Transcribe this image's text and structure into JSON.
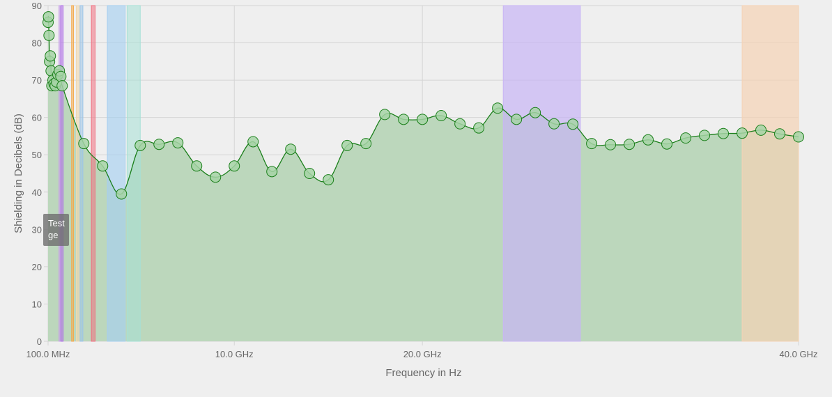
{
  "colors": {
    "line": "#1a7f1a",
    "fill": "#bcd7bc",
    "point_fill": "#a6d3a6",
    "grid": "#d4d4d4",
    "axis_text": "#666666",
    "background": "#efefef"
  },
  "chart_data": {
    "type": "line",
    "xlabel": "Frequency in Hz",
    "ylabel": "Shielding in Decibels (dB)",
    "xlim": [
      0.1,
      40.0
    ],
    "ylim": [
      0,
      90
    ],
    "y_ticks": [
      0,
      10,
      20,
      30,
      40,
      50,
      60,
      70,
      80,
      90
    ],
    "x_ticks": [
      {
        "value": 0.1,
        "label": "100.0 MHz"
      },
      {
        "value": 10.0,
        "label": "10.0 GHz"
      },
      {
        "value": 20.0,
        "label": "20.0 GHz"
      },
      {
        "value": 40.0,
        "label": "40.0 GHz"
      }
    ],
    "grid": true,
    "x_unit": "GHz",
    "series": [
      {
        "points": [
          [
            0.1,
            85.5
          ],
          [
            0.12,
            87.0
          ],
          [
            0.15,
            82.0
          ],
          [
            0.18,
            75.0
          ],
          [
            0.22,
            76.5
          ],
          [
            0.26,
            72.5
          ],
          [
            0.3,
            68.5
          ],
          [
            0.36,
            70.0
          ],
          [
            0.42,
            69.0
          ],
          [
            0.48,
            68.5
          ],
          [
            0.55,
            69.5
          ],
          [
            0.62,
            71.5
          ],
          [
            0.7,
            72.5
          ],
          [
            0.78,
            71.0
          ],
          [
            0.85,
            68.5
          ],
          [
            2.0,
            53.0
          ],
          [
            3.0,
            47.0
          ],
          [
            4.0,
            39.5
          ],
          [
            5.0,
            52.5
          ],
          [
            6.0,
            52.8
          ],
          [
            7.0,
            53.2
          ],
          [
            8.0,
            47.0
          ],
          [
            9.0,
            44.0
          ],
          [
            10.0,
            47.0
          ],
          [
            11.0,
            53.5
          ],
          [
            12.0,
            45.5
          ],
          [
            13.0,
            51.5
          ],
          [
            14.0,
            45.0
          ],
          [
            15.0,
            43.3
          ],
          [
            16.0,
            52.5
          ],
          [
            17.0,
            53.0
          ],
          [
            18.0,
            60.8
          ],
          [
            19.0,
            59.5
          ],
          [
            20.0,
            59.5
          ],
          [
            21.0,
            60.5
          ],
          [
            22.0,
            58.3
          ],
          [
            23.0,
            57.2
          ],
          [
            24.0,
            62.5
          ],
          [
            25.0,
            59.5
          ],
          [
            26.0,
            61.3
          ],
          [
            27.0,
            58.3
          ],
          [
            28.0,
            58.2
          ],
          [
            29.0,
            53.0
          ],
          [
            30.0,
            52.7
          ],
          [
            31.0,
            52.8
          ],
          [
            32.0,
            54.0
          ],
          [
            33.0,
            52.9
          ],
          [
            34.0,
            54.5
          ],
          [
            35.0,
            55.2
          ],
          [
            36.0,
            55.7
          ],
          [
            37.0,
            55.8
          ],
          [
            38.0,
            56.6
          ],
          [
            39.0,
            55.6
          ],
          [
            40.0,
            54.8
          ]
        ]
      }
    ],
    "bands": [
      {
        "x0": 0.68,
        "x1": 0.74,
        "color": "#c8a0e8",
        "opacity": 0.55
      },
      {
        "x0": 0.78,
        "x1": 0.9,
        "color": "#b070e8",
        "opacity": 0.55
      },
      {
        "x0": 1.35,
        "x1": 1.45,
        "color": "#f5a94a",
        "opacity": 0.5
      },
      {
        "x0": 1.6,
        "x1": 1.75,
        "color": "#f0d8b0",
        "opacity": 0.6
      },
      {
        "x0": 1.8,
        "x1": 1.95,
        "color": "#9cc4e8",
        "opacity": 0.55
      },
      {
        "x0": 2.4,
        "x1": 2.6,
        "color": "#f07080",
        "opacity": 0.55
      },
      {
        "x0": 3.25,
        "x1": 4.2,
        "color": "#a6cfef",
        "opacity": 0.65
      },
      {
        "x0": 4.3,
        "x1": 5.0,
        "color": "#a6e0d6",
        "opacity": 0.55
      },
      {
        "x0": 24.3,
        "x1": 28.4,
        "color": "#c8b5f5",
        "opacity": 0.7
      },
      {
        "x0": 37.0,
        "x1": 40.0,
        "color": "#f5d3b5",
        "opacity": 0.7
      }
    ],
    "tooltip": {
      "lines": [
        "Test",
        "ge"
      ]
    }
  }
}
